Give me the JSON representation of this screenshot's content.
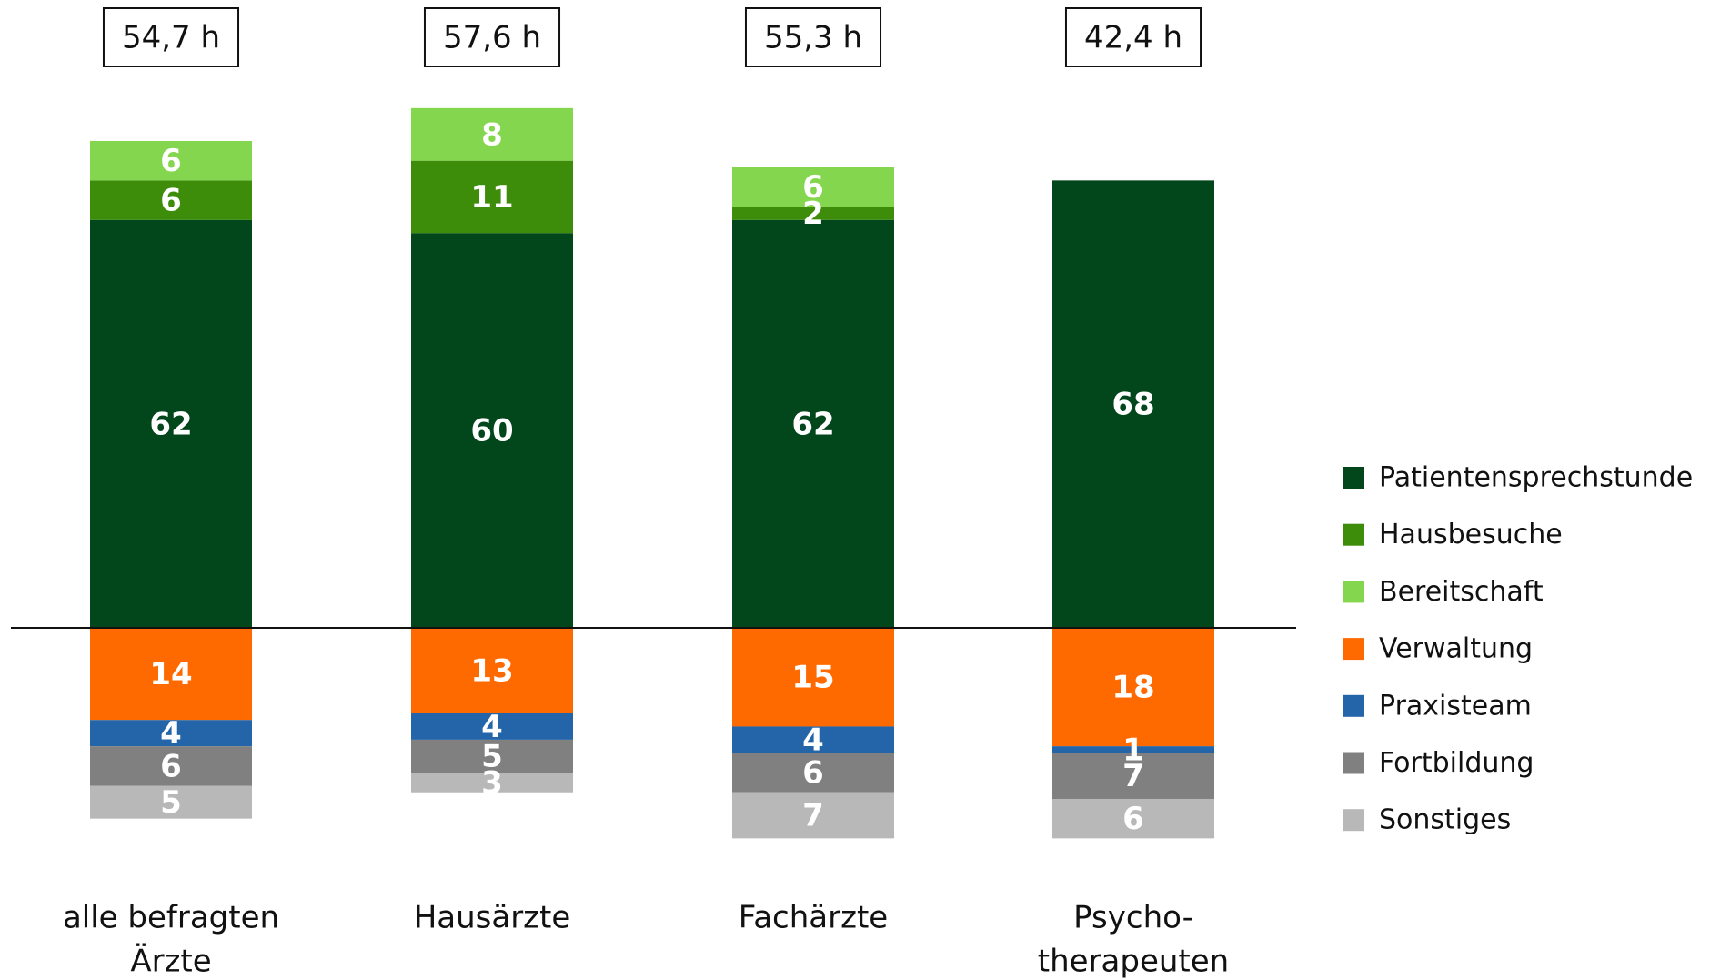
{
  "chart_data": {
    "type": "diverging-stacked-bar",
    "categories": [
      [
        "alle befragten",
        "Ärzte"
      ],
      [
        "Hausärzte"
      ],
      [
        "Fachärzte"
      ],
      [
        "Psycho-",
        "therapeuten"
      ]
    ],
    "totals": [
      "54,7 h",
      "57,6 h",
      "55,3 h",
      "42,4 h"
    ],
    "series": [
      {
        "name": "Patientensprechstunde",
        "color": "#02461b",
        "stack": "up",
        "values": [
          62,
          60,
          62,
          68
        ]
      },
      {
        "name": "Hausbesuche",
        "color": "#3d8c0a",
        "stack": "up",
        "values": [
          6,
          11,
          2,
          null
        ]
      },
      {
        "name": "Bereitschaft",
        "color": "#84d64e",
        "stack": "up",
        "values": [
          6,
          8,
          6,
          null
        ]
      },
      {
        "name": "Verwaltung",
        "color": "#ff6a00",
        "stack": "down",
        "values": [
          14,
          13,
          15,
          18
        ]
      },
      {
        "name": "Praxisteam",
        "color": "#2464a8",
        "stack": "down",
        "values": [
          4,
          4,
          4,
          1
        ]
      },
      {
        "name": "Fortbildung",
        "color": "#808080",
        "stack": "down",
        "values": [
          6,
          5,
          6,
          7
        ]
      },
      {
        "name": "Sonstiges",
        "color": "#b8b8b8",
        "stack": "down",
        "values": [
          5,
          3,
          7,
          6
        ]
      }
    ]
  }
}
